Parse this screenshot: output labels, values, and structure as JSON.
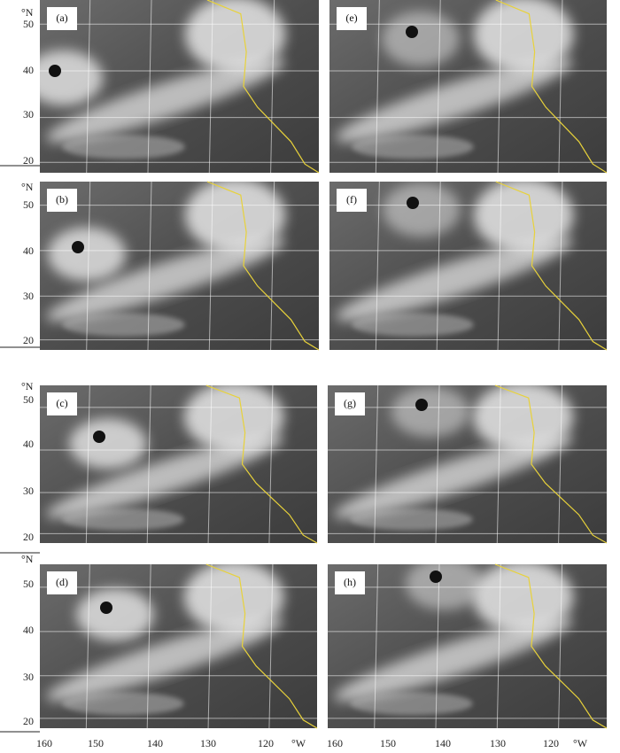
{
  "lat_unit": "°N",
  "lon_unit": "°W",
  "lat_labels": [
    50,
    40,
    30,
    20
  ],
  "lon_labels": [
    160,
    150,
    140,
    130,
    120
  ],
  "panels": [
    {
      "label": "(a)"
    },
    {
      "label": "(b)"
    },
    {
      "label": "(c)"
    },
    {
      "label": "(d)"
    },
    {
      "label": "(e)"
    },
    {
      "label": "(f)"
    },
    {
      "label": "(g)"
    },
    {
      "label": "(h)"
    }
  ]
}
